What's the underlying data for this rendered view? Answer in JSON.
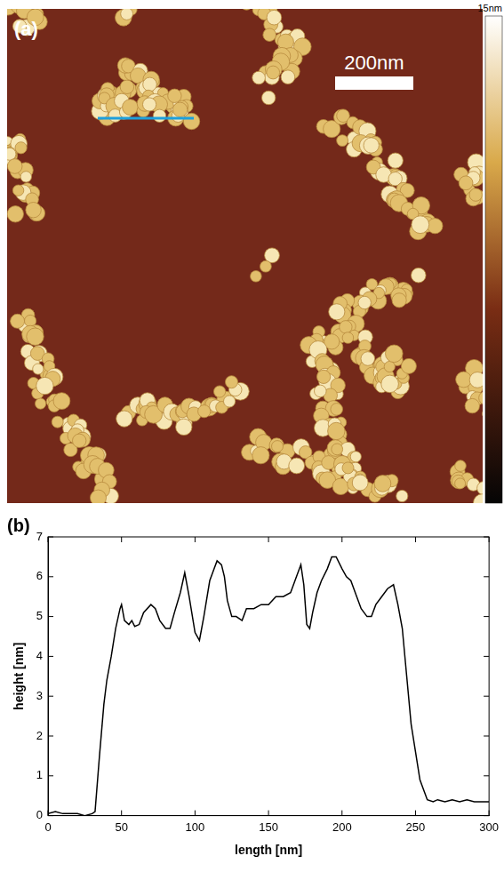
{
  "image": {
    "label": "(a)",
    "scale_bar": "200nm",
    "colorbar": {
      "range": [
        0,
        15
      ],
      "ticks": [
        {
          "value": 15,
          "label": "15nm"
        }
      ]
    }
  },
  "chart_data": {
    "type": "line",
    "label": "(b)",
    "x_label": "length [nm]",
    "y_label": "height [nm]",
    "x": [
      0,
      5,
      10,
      15,
      20,
      25,
      30,
      32,
      35,
      38,
      40,
      43,
      46,
      49,
      50,
      52,
      55,
      57,
      59,
      62,
      65,
      70,
      73,
      76,
      80,
      83,
      86,
      90,
      93,
      96,
      100,
      103,
      106,
      110,
      113,
      115,
      118,
      120,
      122,
      125,
      128,
      132,
      135,
      140,
      145,
      150,
      155,
      160,
      165,
      168,
      172,
      174,
      176,
      178,
      180,
      183,
      186,
      190,
      193,
      196,
      200,
      203,
      206,
      210,
      213,
      217,
      220,
      223,
      227,
      231,
      235,
      238,
      241,
      244,
      247,
      250,
      253,
      256,
      258,
      262,
      265,
      270,
      275,
      280,
      285,
      290,
      295,
      300
    ],
    "values": [
      0.05,
      0.1,
      0.05,
      0.05,
      0.05,
      0,
      0.05,
      0.1,
      1.5,
      2.8,
      3.4,
      4.0,
      4.7,
      5.2,
      5.3,
      4.9,
      4.8,
      4.9,
      4.75,
      4.8,
      5.1,
      5.3,
      5.2,
      4.9,
      4.7,
      4.7,
      5.1,
      5.6,
      6.1,
      5.5,
      4.6,
      4.4,
      5.0,
      5.9,
      6.2,
      6.4,
      6.3,
      6.0,
      5.4,
      5.0,
      5.0,
      4.9,
      5.2,
      5.2,
      5.3,
      5.3,
      5.5,
      5.5,
      5.6,
      5.9,
      6.3,
      5.8,
      4.8,
      4.7,
      5.1,
      5.6,
      5.9,
      6.2,
      6.5,
      6.5,
      6.2,
      6.0,
      5.9,
      5.5,
      5.2,
      5.0,
      5.0,
      5.3,
      5.5,
      5.7,
      5.8,
      5.3,
      4.7,
      3.5,
      2.3,
      1.6,
      0.9,
      0.6,
      0.4,
      0.35,
      0.4,
      0.35,
      0.4,
      0.35,
      0.4,
      0.35,
      0.35,
      0.35
    ],
    "color": "#000000",
    "xlim": [
      0,
      300
    ],
    "ylim": [
      0,
      7
    ],
    "xticks": [
      0,
      50,
      100,
      150,
      200,
      250,
      300
    ],
    "yticks": [
      0,
      1,
      2,
      3,
      4,
      5,
      6,
      7
    ],
    "grid": false
  }
}
